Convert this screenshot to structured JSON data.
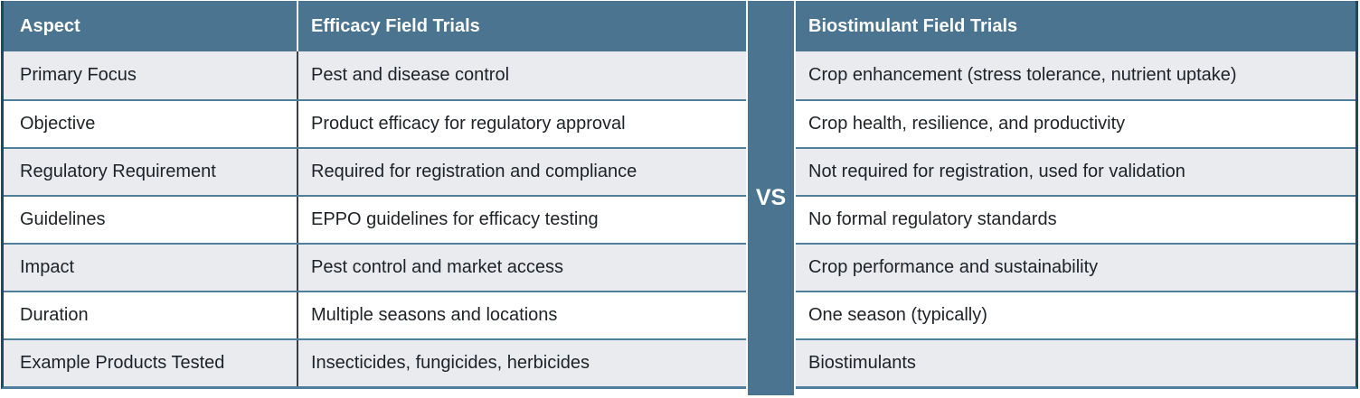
{
  "chart_data": {
    "type": "table",
    "title": "Efficacy Field Trials vs Biostimulant Field Trials",
    "columns": [
      "Aspect",
      "Efficacy Field Trials",
      "Biostimulant Field Trials"
    ],
    "rows": [
      {
        "aspect": "Primary Focus",
        "efficacy": "Pest and disease control",
        "biostimulant": "Crop enhancement (stress tolerance, nutrient uptake)"
      },
      {
        "aspect": "Objective",
        "efficacy": "Product efficacy for regulatory approval",
        "biostimulant": "Crop health, resilience, and productivity"
      },
      {
        "aspect": "Regulatory Requirement",
        "efficacy": "Required for registration and compliance",
        "biostimulant": "Not required for registration, used for validation"
      },
      {
        "aspect": "Guidelines",
        "efficacy": "EPPO guidelines for efficacy testing",
        "biostimulant": "No formal regulatory standards"
      },
      {
        "aspect": "Impact",
        "efficacy": "Pest control and market access",
        "biostimulant": "Crop performance and sustainability"
      },
      {
        "aspect": "Duration",
        "efficacy": "Multiple seasons and locations",
        "biostimulant": "One season (typically)"
      },
      {
        "aspect": "Example Products Tested",
        "efficacy": "Insecticides, fungicides, herbicides",
        "biostimulant": "Biostimulants"
      }
    ],
    "layout": {
      "divider_label_between_tables": "VS",
      "striped_rows": true,
      "legend_position": "none"
    }
  },
  "vs_label": "VS",
  "colors": {
    "header_bg": "#4A7490",
    "vs_strip_bg": "#4A7490",
    "row_alt_bg": "#E9EBEE",
    "row_bg": "#FFFFFF",
    "row_border": "#4F7E9B",
    "outer_border": "#1C4A61",
    "column_divider": "#3A3F45",
    "header_text": "#FFFFFF",
    "body_text": "#1E2226"
  }
}
